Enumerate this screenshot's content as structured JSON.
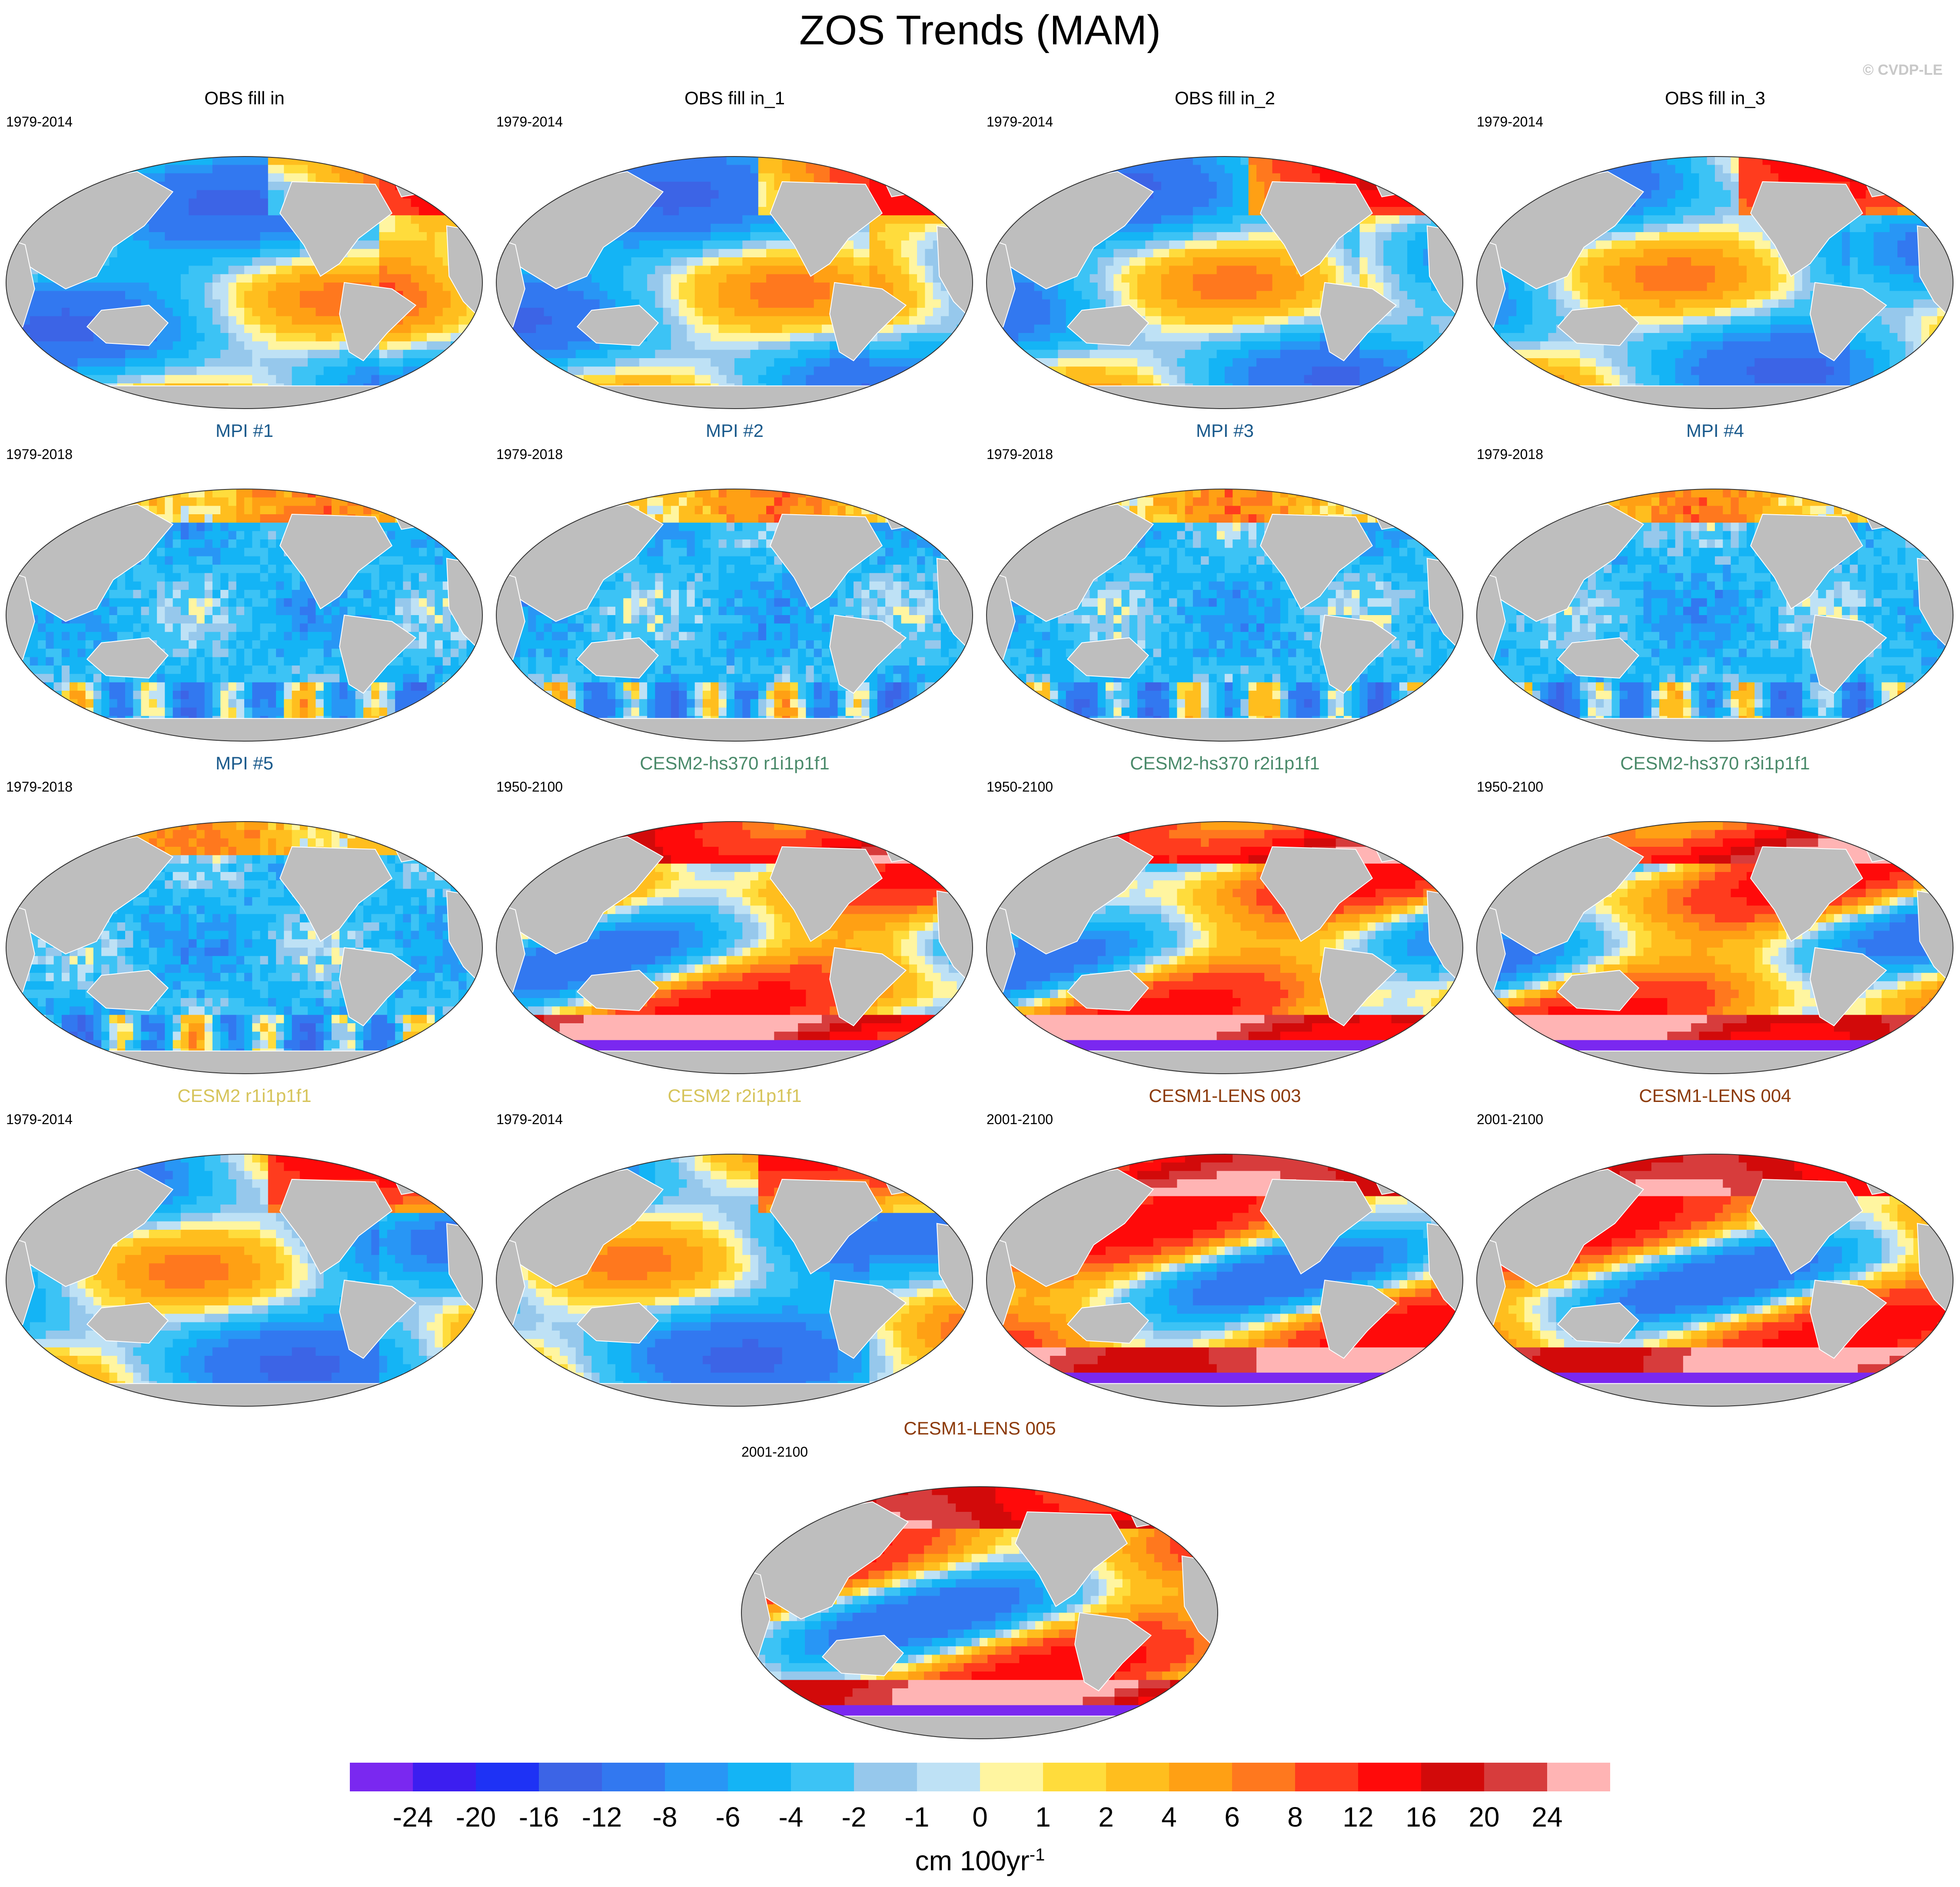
{
  "title": "ZOS Trends (MAM)",
  "credit": "© CVDP-LE",
  "colors": {
    "land": "#bebebe",
    "ice_shelf": "#ffffff",
    "obs_title": "#000000",
    "mpi_title": "#1a5a8c",
    "cesm2hs_title": "#4a8a6a",
    "cesm2_title": "#d6c45a",
    "cesm1_title": "#8c3a0a"
  },
  "panels": [
    {
      "title": "OBS fill in",
      "period": "1979-2014",
      "group": "obs",
      "pattern": "obs"
    },
    {
      "title": "OBS fill in_1",
      "period": "1979-2014",
      "group": "obs",
      "pattern": "obs"
    },
    {
      "title": "OBS fill in_2",
      "period": "1979-2014",
      "group": "obs",
      "pattern": "obs"
    },
    {
      "title": "OBS fill in_3",
      "period": "1979-2014",
      "group": "obs",
      "pattern": "obs"
    },
    {
      "title": "MPI #1",
      "period": "1979-2018",
      "group": "mpi",
      "pattern": "mpi"
    },
    {
      "title": "MPI #2",
      "period": "1979-2018",
      "group": "mpi",
      "pattern": "mpi"
    },
    {
      "title": "MPI #3",
      "period": "1979-2018",
      "group": "mpi",
      "pattern": "mpi"
    },
    {
      "title": "MPI #4",
      "period": "1979-2018",
      "group": "mpi",
      "pattern": "mpi"
    },
    {
      "title": "MPI #5",
      "period": "1979-2018",
      "group": "mpi",
      "pattern": "mpi"
    },
    {
      "title": "CESM2-hs370 r1i1p1f1",
      "period": "1950-2100",
      "group": "cesm2hs",
      "pattern": "future"
    },
    {
      "title": "CESM2-hs370 r2i1p1f1",
      "period": "1950-2100",
      "group": "cesm2hs",
      "pattern": "future"
    },
    {
      "title": "CESM2-hs370 r3i1p1f1",
      "period": "1950-2100",
      "group": "cesm2hs",
      "pattern": "future"
    },
    {
      "title": "CESM2 r1i1p1f1",
      "period": "1979-2014",
      "group": "cesm2",
      "pattern": "obs"
    },
    {
      "title": "CESM2 r2i1p1f1",
      "period": "1979-2014",
      "group": "cesm2",
      "pattern": "obs"
    },
    {
      "title": "CESM1-LENS 003",
      "period": "2001-2100",
      "group": "cesm1",
      "pattern": "future"
    },
    {
      "title": "CESM1-LENS 004",
      "period": "2001-2100",
      "group": "cesm1",
      "pattern": "future"
    },
    {
      "title": "CESM1-LENS 005",
      "period": "2001-2100",
      "group": "cesm1",
      "pattern": "future"
    }
  ],
  "colorbar": {
    "colors": [
      "#7a28f0",
      "#3c1ef0",
      "#1e32f5",
      "#3c64e6",
      "#3278f0",
      "#2896f5",
      "#14b4f5",
      "#3cc3f5",
      "#96c8ec",
      "#bee1f5",
      "#fff5a0",
      "#ffdc3c",
      "#ffbe1e",
      "#ffa014",
      "#ff781e",
      "#ff3c1e",
      "#ff0a0a",
      "#d20a0a",
      "#d73c3c",
      "#ffb4b4"
    ],
    "labels": [
      "-24",
      "-20",
      "-16",
      "-12",
      "-8",
      "-6",
      "-4",
      "-2",
      "-1",
      "0",
      "1",
      "2",
      "4",
      "6",
      "8",
      "12",
      "16",
      "20",
      "24"
    ],
    "units": "cm 100yr",
    "units_exponent": "-1"
  }
}
